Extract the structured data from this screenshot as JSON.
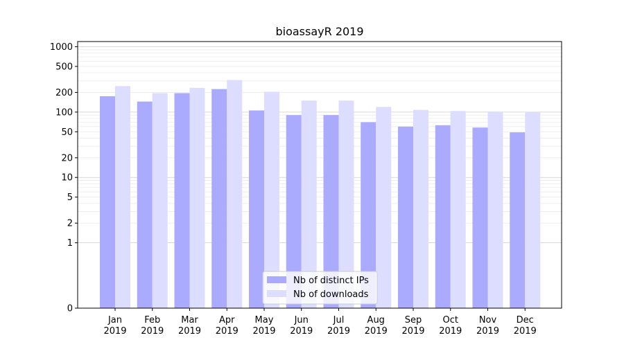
{
  "chart_data": {
    "type": "bar",
    "title": "bioassayR 2019",
    "xlabel": "",
    "ylabel": "",
    "yscale": "symlog",
    "ylim": [
      0,
      1200
    ],
    "grid": true,
    "legend_position": "lower-center",
    "categories": [
      [
        "Jan",
        "2019"
      ],
      [
        "Feb",
        "2019"
      ],
      [
        "Mar",
        "2019"
      ],
      [
        "Apr",
        "2019"
      ],
      [
        "May",
        "2019"
      ],
      [
        "Jun",
        "2019"
      ],
      [
        "Jul",
        "2019"
      ],
      [
        "Aug",
        "2019"
      ],
      [
        "Sep",
        "2019"
      ],
      [
        "Oct",
        "2019"
      ],
      [
        "Nov",
        "2019"
      ],
      [
        "Dec",
        "2019"
      ]
    ],
    "yticks": [
      {
        "value": 0,
        "label": "0"
      },
      {
        "value": 1,
        "label": "1"
      },
      {
        "value": 2,
        "label": "2"
      },
      {
        "value": 5,
        "label": "5"
      },
      {
        "value": 10,
        "label": "10"
      },
      {
        "value": 20,
        "label": "20"
      },
      {
        "value": 50,
        "label": "50"
      },
      {
        "value": 100,
        "label": "100"
      },
      {
        "value": 200,
        "label": "200"
      },
      {
        "value": 500,
        "label": "500"
      },
      {
        "value": 1000,
        "label": "1000"
      }
    ],
    "series": [
      {
        "name": "Nb of distinct IPs",
        "color": "#aaaaff",
        "values": [
          175,
          145,
          195,
          225,
          106,
          90,
          90,
          70,
          60,
          63,
          58,
          49
        ]
      },
      {
        "name": "Nb of downloads",
        "color": "#ddddff",
        "values": [
          250,
          195,
          235,
          310,
          205,
          150,
          150,
          120,
          108,
          104,
          102,
          100
        ]
      }
    ]
  }
}
